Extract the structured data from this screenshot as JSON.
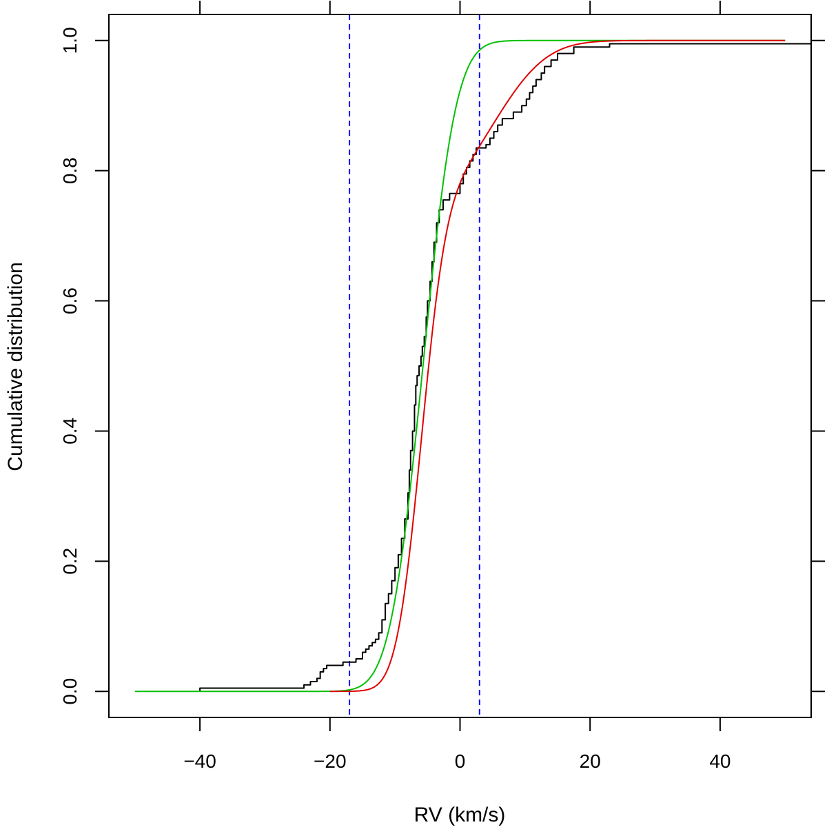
{
  "chart_data": {
    "type": "line",
    "title": "",
    "xlabel": "RV (km/s)",
    "ylabel": "Cumulative distribution",
    "xlim": [
      -54,
      54
    ],
    "ylim": [
      -0.04,
      1.04
    ],
    "x_ticks": [
      -40,
      -20,
      0,
      20,
      40
    ],
    "x_tick_labels": [
      "−40",
      "−20",
      "0",
      "20",
      "40"
    ],
    "y_ticks": [
      0.0,
      0.2,
      0.4,
      0.6,
      0.8,
      1.0
    ],
    "y_tick_labels": [
      "0.0",
      "0.2",
      "0.4",
      "0.6",
      "0.8",
      "1.0"
    ],
    "grid": false,
    "reference_lines": [
      {
        "name": "lower-bound-line",
        "x": -17,
        "color": "#0000ff",
        "style": "dashed"
      },
      {
        "name": "upper-bound-line",
        "x": 3,
        "color": "#0000ff",
        "style": "dashed"
      }
    ],
    "series": [
      {
        "name": "empirical-cdf",
        "kind": "step",
        "color": "#000000",
        "points": [
          [
            -40,
            0.0
          ],
          [
            -40,
            0.005
          ],
          [
            -24,
            0.005
          ],
          [
            -24,
            0.01
          ],
          [
            -23,
            0.01
          ],
          [
            -23,
            0.015
          ],
          [
            -22,
            0.015
          ],
          [
            -22,
            0.02
          ],
          [
            -21.5,
            0.02
          ],
          [
            -21.5,
            0.03
          ],
          [
            -21,
            0.03
          ],
          [
            -21,
            0.035
          ],
          [
            -20.5,
            0.035
          ],
          [
            -20.5,
            0.04
          ],
          [
            -18,
            0.04
          ],
          [
            -18,
            0.045
          ],
          [
            -16,
            0.045
          ],
          [
            -16,
            0.05
          ],
          [
            -15,
            0.05
          ],
          [
            -15,
            0.06
          ],
          [
            -14.5,
            0.06
          ],
          [
            -14.5,
            0.065
          ],
          [
            -14,
            0.065
          ],
          [
            -14,
            0.07
          ],
          [
            -13.5,
            0.07
          ],
          [
            -13.5,
            0.075
          ],
          [
            -13,
            0.075
          ],
          [
            -13,
            0.08
          ],
          [
            -12.5,
            0.08
          ],
          [
            -12.5,
            0.09
          ],
          [
            -12,
            0.09
          ],
          [
            -12,
            0.11
          ],
          [
            -11.5,
            0.11
          ],
          [
            -11.5,
            0.135
          ],
          [
            -11,
            0.135
          ],
          [
            -11,
            0.15
          ],
          [
            -10.5,
            0.15
          ],
          [
            -10.5,
            0.17
          ],
          [
            -10,
            0.17
          ],
          [
            -10,
            0.19
          ],
          [
            -9.5,
            0.19
          ],
          [
            -9.5,
            0.21
          ],
          [
            -9,
            0.21
          ],
          [
            -9,
            0.235
          ],
          [
            -8.5,
            0.235
          ],
          [
            -8.5,
            0.265
          ],
          [
            -8,
            0.265
          ],
          [
            -8,
            0.305
          ],
          [
            -7.8,
            0.305
          ],
          [
            -7.8,
            0.34
          ],
          [
            -7.6,
            0.34
          ],
          [
            -7.6,
            0.37
          ],
          [
            -7.3,
            0.37
          ],
          [
            -7.3,
            0.4
          ],
          [
            -7,
            0.4
          ],
          [
            -7,
            0.44
          ],
          [
            -6.8,
            0.44
          ],
          [
            -6.8,
            0.47
          ],
          [
            -6.6,
            0.47
          ],
          [
            -6.6,
            0.485
          ],
          [
            -6.3,
            0.485
          ],
          [
            -6.3,
            0.5
          ],
          [
            -6,
            0.5
          ],
          [
            -6,
            0.515
          ],
          [
            -5.8,
            0.515
          ],
          [
            -5.8,
            0.53
          ],
          [
            -5.5,
            0.53
          ],
          [
            -5.5,
            0.545
          ],
          [
            -5.2,
            0.545
          ],
          [
            -5.2,
            0.575
          ],
          [
            -5,
            0.575
          ],
          [
            -5,
            0.6
          ],
          [
            -4.6,
            0.6
          ],
          [
            -4.6,
            0.63
          ],
          [
            -4.3,
            0.63
          ],
          [
            -4.3,
            0.66
          ],
          [
            -4,
            0.66
          ],
          [
            -4,
            0.69
          ],
          [
            -3.6,
            0.69
          ],
          [
            -3.6,
            0.72
          ],
          [
            -3.2,
            0.72
          ],
          [
            -3.2,
            0.74
          ],
          [
            -2.6,
            0.74
          ],
          [
            -2.6,
            0.755
          ],
          [
            -1.6,
            0.755
          ],
          [
            -1.6,
            0.765
          ],
          [
            0,
            0.765
          ],
          [
            0,
            0.78
          ],
          [
            0.5,
            0.78
          ],
          [
            0.5,
            0.795
          ],
          [
            1,
            0.795
          ],
          [
            1,
            0.805
          ],
          [
            1.5,
            0.805
          ],
          [
            1.5,
            0.815
          ],
          [
            2,
            0.815
          ],
          [
            2,
            0.825
          ],
          [
            2.5,
            0.825
          ],
          [
            2.5,
            0.835
          ],
          [
            4,
            0.835
          ],
          [
            4,
            0.84
          ],
          [
            4.6,
            0.84
          ],
          [
            4.6,
            0.85
          ],
          [
            5.2,
            0.85
          ],
          [
            5.2,
            0.86
          ],
          [
            5.8,
            0.86
          ],
          [
            5.8,
            0.87
          ],
          [
            6.5,
            0.87
          ],
          [
            6.5,
            0.88
          ],
          [
            8.2,
            0.88
          ],
          [
            8.2,
            0.89
          ],
          [
            9.5,
            0.89
          ],
          [
            9.5,
            0.9
          ],
          [
            10.2,
            0.9
          ],
          [
            10.2,
            0.91
          ],
          [
            10.7,
            0.91
          ],
          [
            10.7,
            0.92
          ],
          [
            11.2,
            0.92
          ],
          [
            11.2,
            0.93
          ],
          [
            11.7,
            0.93
          ],
          [
            11.7,
            0.94
          ],
          [
            12.5,
            0.94
          ],
          [
            12.5,
            0.95
          ],
          [
            13,
            0.95
          ],
          [
            13,
            0.96
          ],
          [
            14,
            0.96
          ],
          [
            14,
            0.97
          ],
          [
            15,
            0.97
          ],
          [
            15,
            0.98
          ],
          [
            17.5,
            0.98
          ],
          [
            17.5,
            0.99
          ],
          [
            23,
            0.99
          ],
          [
            23,
            0.995
          ],
          [
            54,
            0.995
          ]
        ]
      },
      {
        "name": "single-gaussian-model",
        "kind": "curve",
        "color": "#00c000",
        "range": [
          -50,
          50
        ],
        "model": {
          "components": [
            {
              "weight": 1.0,
              "mean": -5.7,
              "sigma": 4.0
            }
          ]
        }
      },
      {
        "name": "two-gaussian-model",
        "kind": "curve",
        "color": "#e00000",
        "range": [
          -20,
          50
        ],
        "model": {
          "components": [
            {
              "weight": 0.74,
              "mean": -6.0,
              "sigma": 3.0
            },
            {
              "weight": 0.26,
              "mean": 5.0,
              "sigma": 6.5
            }
          ]
        }
      }
    ]
  }
}
